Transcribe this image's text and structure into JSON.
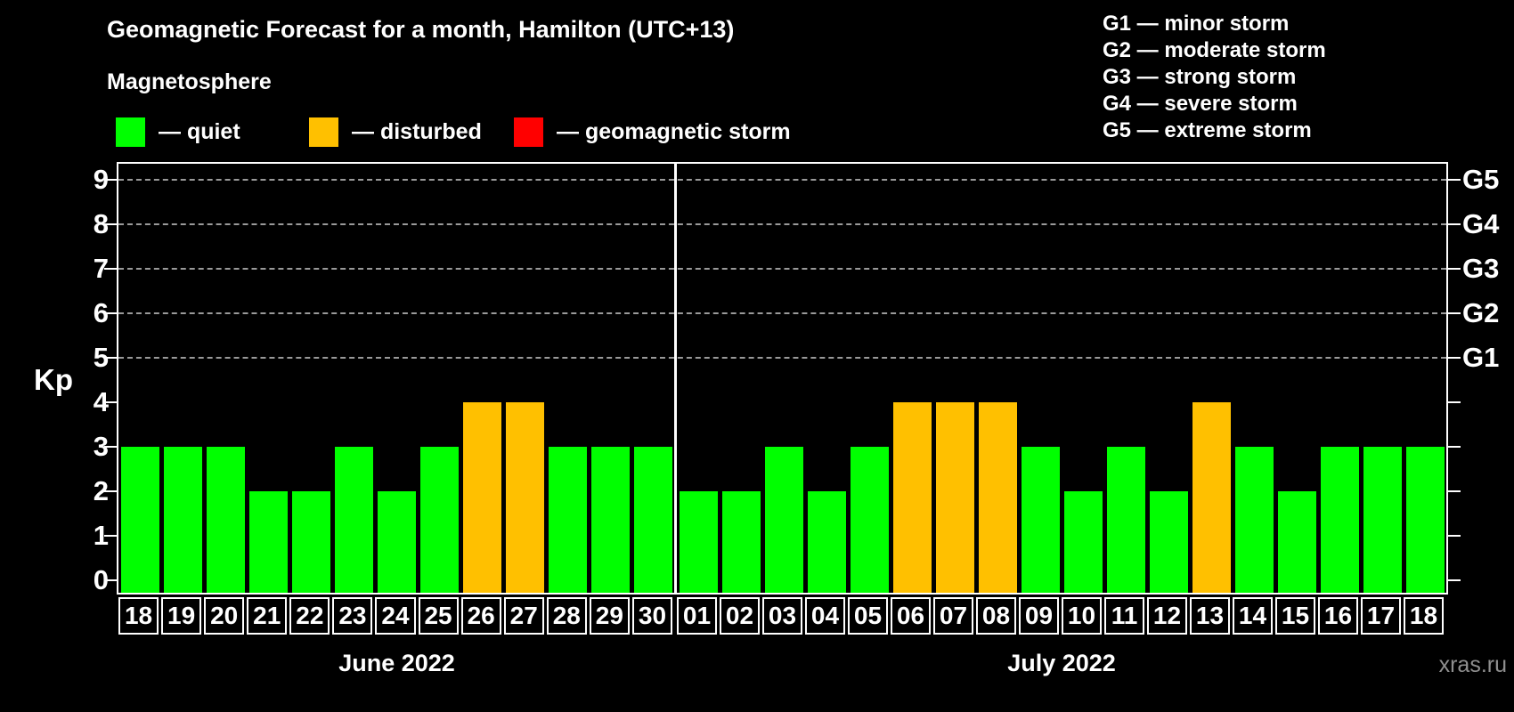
{
  "header": {
    "title": "Geomagnetic Forecast for a month, Hamilton (UTC+13)",
    "subtitle": "Magnetosphere"
  },
  "legend": {
    "items": [
      {
        "name": "quiet",
        "label": "— quiet",
        "color": "#00ff00"
      },
      {
        "name": "disturbed",
        "label": "— disturbed",
        "color": "#ffc000"
      },
      {
        "name": "storm",
        "label": "— geomagnetic storm",
        "color": "#ff0000"
      }
    ]
  },
  "g_legend": {
    "lines": [
      "G1 — minor storm",
      "G2 — moderate storm",
      "G3 — strong storm",
      "G4 — severe storm",
      "G5 — extreme storm"
    ]
  },
  "watermark": "xras.ru",
  "chart_data": {
    "type": "bar",
    "title": "Geomagnetic Forecast for a month, Hamilton (UTC+13)",
    "ylabel": "Kp",
    "ylim": [
      -0.3,
      9.4
    ],
    "yticks": [
      0,
      1,
      2,
      3,
      4,
      5,
      6,
      7,
      8,
      9
    ],
    "grid_levels": [
      5,
      6,
      7,
      8,
      9
    ],
    "grid": true,
    "legend_position": "top",
    "right_axis_labels": [
      {
        "kp": 5,
        "label": "G1"
      },
      {
        "kp": 6,
        "label": "G2"
      },
      {
        "kp": 7,
        "label": "G3"
      },
      {
        "kp": 8,
        "label": "G4"
      },
      {
        "kp": 9,
        "label": "G5"
      }
    ],
    "colors": {
      "quiet": "#00ff00",
      "disturbed": "#ffc000",
      "storm": "#ff0000"
    },
    "months": [
      {
        "label": "June 2022",
        "categories": [
          "18",
          "19",
          "20",
          "21",
          "22",
          "23",
          "24",
          "25",
          "26",
          "27",
          "28",
          "29",
          "30"
        ],
        "values": [
          3,
          3,
          3,
          2,
          2,
          3,
          2,
          3,
          4,
          4,
          3,
          3,
          3
        ],
        "states": [
          "quiet",
          "quiet",
          "quiet",
          "quiet",
          "quiet",
          "quiet",
          "quiet",
          "quiet",
          "disturbed",
          "disturbed",
          "quiet",
          "quiet",
          "quiet"
        ]
      },
      {
        "label": "July 2022",
        "categories": [
          "01",
          "02",
          "03",
          "04",
          "05",
          "06",
          "07",
          "08",
          "09",
          "10",
          "11",
          "12",
          "13",
          "14",
          "15",
          "16",
          "17",
          "18"
        ],
        "values": [
          2,
          2,
          3,
          2,
          3,
          4,
          4,
          4,
          3,
          2,
          3,
          2,
          4,
          3,
          2,
          3,
          3,
          3
        ],
        "states": [
          "quiet",
          "quiet",
          "quiet",
          "quiet",
          "quiet",
          "disturbed",
          "disturbed",
          "disturbed",
          "quiet",
          "quiet",
          "quiet",
          "quiet",
          "disturbed",
          "quiet",
          "quiet",
          "quiet",
          "quiet",
          "quiet"
        ]
      }
    ]
  }
}
